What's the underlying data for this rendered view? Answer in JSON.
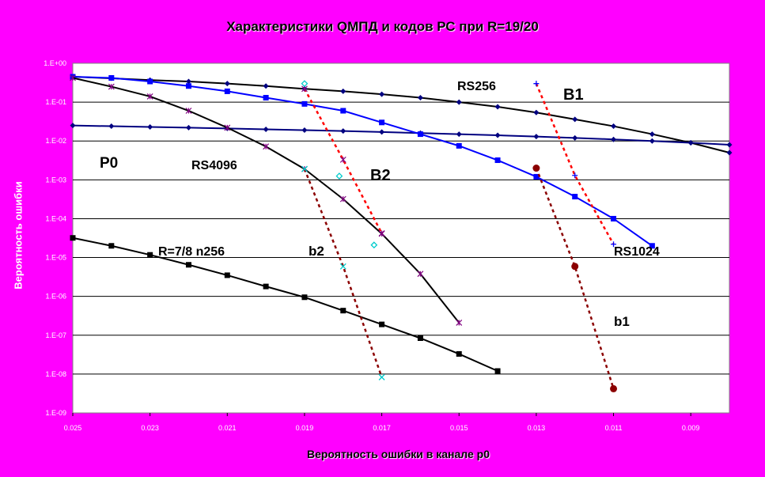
{
  "chart_data": {
    "type": "line",
    "title": "Характеристики QМПД и кодов РС при R=19/20",
    "xlabel": "Вероятность ошибки в канале p0",
    "ylabel": "Вероятность ошибки",
    "x_reversed": true,
    "xlim": [
      0.025,
      0.008
    ],
    "y_scale": "log",
    "ylim": [
      1e-09,
      1
    ],
    "grid": "horizontal",
    "x_ticks": [
      "0.025",
      "0.023",
      "0.021",
      "0.019",
      "0.017",
      "0.015",
      "0.013",
      "0.011",
      "0.009"
    ],
    "y_ticks": [
      "1.E+00",
      "1.E-01",
      "1.E-02",
      "1.E-03",
      "1.E-04",
      "1.E-05",
      "1.E-06",
      "1.E-07",
      "1.E-08",
      "1.E-09"
    ],
    "series": [
      {
        "id": "rs256",
        "name": "RS256",
        "color": "#000000",
        "style": "solid",
        "marker": "diamond",
        "x": [
          0.025,
          0.024,
          0.023,
          0.022,
          0.021,
          0.02,
          0.019,
          0.018,
          0.017,
          0.016,
          0.015,
          0.014,
          0.013,
          0.012,
          0.011,
          0.01,
          0.009,
          0.008
        ],
        "y": [
          0.45,
          0.41,
          0.37,
          0.34,
          0.3,
          0.26,
          0.22,
          0.19,
          0.16,
          0.13,
          0.1,
          0.076,
          0.054,
          0.036,
          0.024,
          0.015,
          0.009,
          0.005
        ]
      },
      {
        "id": "p0",
        "name": "P0",
        "color": "#000080",
        "style": "solid",
        "marker": "diamond",
        "x": [
          0.025,
          0.024,
          0.023,
          0.022,
          0.021,
          0.02,
          0.019,
          0.018,
          0.017,
          0.016,
          0.015,
          0.014,
          0.013,
          0.012,
          0.011,
          0.01,
          0.009,
          0.008
        ],
        "y": [
          0.025,
          0.024,
          0.023,
          0.022,
          0.021,
          0.02,
          0.019,
          0.018,
          0.017,
          0.016,
          0.015,
          0.014,
          0.013,
          0.012,
          0.011,
          0.01,
          0.009,
          0.008
        ]
      },
      {
        "id": "rs1024",
        "name": "RS1024",
        "color": "#0000ff",
        "style": "solid",
        "marker": "square",
        "x": [
          0.025,
          0.024,
          0.023,
          0.022,
          0.021,
          0.02,
          0.019,
          0.018,
          0.017,
          0.016,
          0.015,
          0.014,
          0.013,
          0.012,
          0.011,
          0.01
        ],
        "y": [
          0.45,
          0.42,
          0.34,
          0.26,
          0.19,
          0.13,
          0.09,
          0.06,
          0.03,
          0.015,
          0.0075,
          0.0032,
          0.0012,
          0.00037,
          0.0001,
          2e-05
        ]
      },
      {
        "id": "rs4096",
        "name": "RS4096",
        "color": "#000000",
        "style": "solid",
        "marker": "star",
        "x": [
          0.025,
          0.024,
          0.023,
          0.022,
          0.021,
          0.02,
          0.019,
          0.018,
          0.017,
          0.016,
          0.015
        ],
        "y": [
          0.42,
          0.25,
          0.14,
          0.06,
          0.022,
          0.0072,
          0.0019,
          0.00032,
          4.1e-05,
          3.8e-06,
          2.1e-07
        ]
      },
      {
        "id": "r78",
        "name": "R=7/8  n256",
        "color": "#000000",
        "style": "solid",
        "marker": "square",
        "x": [
          0.025,
          0.024,
          0.023,
          0.022,
          0.021,
          0.02,
          0.019,
          0.018,
          0.017,
          0.016,
          0.015,
          0.014
        ],
        "y": [
          3.2e-05,
          2e-05,
          1.17e-05,
          6.5e-06,
          3.5e-06,
          1.8e-06,
          9.5e-07,
          4.3e-07,
          1.9e-07,
          8.4e-08,
          3.3e-08,
          1.2e-08
        ]
      },
      {
        "id": "b2",
        "name": "B2",
        "color": "#ff0000",
        "style": "dashed",
        "marker": "star",
        "x": [
          0.019,
          0.018,
          0.017
        ],
        "y": [
          0.22,
          0.0033,
          4.2e-05
        ]
      },
      {
        "id": "b2o",
        "name": "b2",
        "color": "#00ffff",
        "style": "none",
        "marker": "diamond-open",
        "x": [
          0.019,
          0.0181,
          0.0172
        ],
        "y": [
          0.3,
          0.00125,
          2.1e-05
        ]
      },
      {
        "id": "b2x",
        "name": "b2",
        "color": "#8b0000",
        "style": "dashed",
        "marker": "x",
        "x": [
          0.019,
          0.018,
          0.017
        ],
        "y": [
          0.0019,
          5.9e-06,
          8.3e-09
        ]
      },
      {
        "id": "b1",
        "name": "B1",
        "color": "#ff0000",
        "style": "dashed",
        "marker": "plus",
        "x": [
          0.013,
          0.012,
          0.011
        ],
        "y": [
          0.3,
          0.0013,
          2.2e-05
        ]
      },
      {
        "id": "b1c",
        "name": "b1",
        "color": "#8b0000",
        "style": "dashed",
        "marker": "circle",
        "x": [
          0.013,
          0.012,
          0.011
        ],
        "y": [
          0.002,
          5.9e-06,
          4.2e-09
        ]
      }
    ],
    "annotations": [
      {
        "id": "lbl-rs256",
        "text": "RS256"
      },
      {
        "id": "lbl-b1-upper",
        "text": "B1"
      },
      {
        "id": "lbl-p0",
        "text": "P0"
      },
      {
        "id": "lbl-rs4096",
        "text": "RS4096"
      },
      {
        "id": "lbl-b2-upper",
        "text": "B2"
      },
      {
        "id": "lbl-r78",
        "text": "R=7/8  n256"
      },
      {
        "id": "lbl-b2-lower",
        "text": "b2"
      },
      {
        "id": "lbl-rs1024",
        "text": "RS1024"
      },
      {
        "id": "lbl-b1-lower",
        "text": "b1"
      }
    ]
  }
}
